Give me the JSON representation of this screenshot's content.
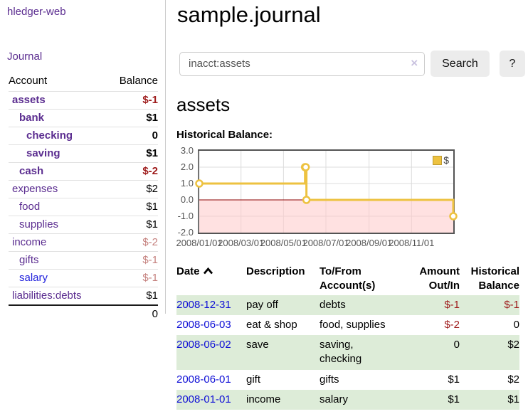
{
  "colors": {
    "accent_purple": "#5b2d90",
    "link_blue": "#0f0fd6",
    "negative_strong": "#9e1b1b",
    "negative_soft": "#c5817e",
    "stripe_green": "#ddecd8",
    "series_gold": "#EDC240",
    "zero_line": "#8b0000",
    "negative_region": "#ffc9c9"
  },
  "sidebar": {
    "app_title": "hledger-web",
    "journal_link": "Journal",
    "accounts": {
      "account_header": "Account",
      "balance_header": "Balance",
      "rows": [
        {
          "name": "assets",
          "level": 1,
          "bold": true,
          "name_style": "purple",
          "balance": "$-1",
          "balance_style": "neg-strong"
        },
        {
          "name": "bank",
          "level": 2,
          "bold": true,
          "name_style": "purple",
          "balance": "$1",
          "balance_style": "pos"
        },
        {
          "name": "checking",
          "level": 3,
          "bold": true,
          "name_style": "purple",
          "balance": "0",
          "balance_style": "pos"
        },
        {
          "name": "saving",
          "level": 3,
          "bold": true,
          "name_style": "purple",
          "balance": "$1",
          "balance_style": "pos"
        },
        {
          "name": "cash",
          "level": 2,
          "bold": true,
          "name_style": "purple",
          "balance": "$-2",
          "balance_style": "neg-strong"
        },
        {
          "name": "expenses",
          "level": 1,
          "bold": false,
          "name_style": "purple",
          "balance": "$2",
          "balance_style": "pos"
        },
        {
          "name": "food",
          "level": 2,
          "bold": false,
          "name_style": "purple",
          "balance": "$1",
          "balance_style": "pos"
        },
        {
          "name": "supplies",
          "level": 2,
          "bold": false,
          "name_style": "purple",
          "balance": "$1",
          "balance_style": "pos"
        },
        {
          "name": "income",
          "level": 1,
          "bold": false,
          "name_style": "purple",
          "balance": "$-2",
          "balance_style": "neg-soft"
        },
        {
          "name": "gifts",
          "level": 2,
          "bold": false,
          "name_style": "purple",
          "balance": "$-1",
          "balance_style": "neg-soft"
        },
        {
          "name": "salary",
          "level": 2,
          "bold": false,
          "name_style": "blue",
          "balance": "$-1",
          "balance_style": "neg-soft"
        },
        {
          "name": "liabilities:debts",
          "level": 1,
          "bold": false,
          "name_style": "purple",
          "balance": "$1",
          "balance_style": "pos"
        }
      ],
      "total": "0"
    }
  },
  "main": {
    "title": "sample.journal",
    "search": {
      "value": "inacct:assets",
      "clear_icon": "×",
      "button_label": "Search",
      "help_label": "?"
    },
    "account_heading": "assets",
    "register": {
      "headers": {
        "date": "Date",
        "description": "Description",
        "accounts": "To/From Account(s)",
        "amount": "Amount Out/In",
        "balance": "Historical Balance"
      },
      "rows": [
        {
          "date": "2008-12-31",
          "description": "pay off",
          "accounts": "debts",
          "amount": "$-1",
          "amount_negative": true,
          "balance": "$-1",
          "balance_negative": true
        },
        {
          "date": "2008-06-03",
          "description": "eat & shop",
          "accounts": "food, supplies",
          "amount": "$-2",
          "amount_negative": true,
          "balance": "0",
          "balance_negative": false
        },
        {
          "date": "2008-06-02",
          "description": "save",
          "accounts": "saving, checking",
          "amount": "0",
          "amount_negative": false,
          "balance": "$2",
          "balance_negative": false
        },
        {
          "date": "2008-06-01",
          "description": "gift",
          "accounts": "gifts",
          "amount": "$1",
          "amount_negative": false,
          "balance": "$2",
          "balance_negative": false
        },
        {
          "date": "2008-01-01",
          "description": "income",
          "accounts": "salary",
          "amount": "$1",
          "amount_negative": false,
          "balance": "$1",
          "balance_negative": false
        }
      ]
    }
  },
  "chart_data": {
    "type": "line",
    "step": true,
    "title": "Historical Balance:",
    "series": [
      {
        "name": "$",
        "color": "#EDC240",
        "points": [
          [
            "2008-01-01",
            1
          ],
          [
            "2008-06-01",
            2
          ],
          [
            "2008-06-02",
            2
          ],
          [
            "2008-06-03",
            0
          ],
          [
            "2008-12-31",
            -1
          ]
        ]
      }
    ],
    "x_range": [
      "2008-01-01",
      "2008-12-31"
    ],
    "xticks": [
      "2008/01/01",
      "2008/03/01",
      "2008/05/01",
      "2008/07/01",
      "2008/09/01",
      "2008/11/01"
    ],
    "yticks": [
      "3.0",
      "2.0",
      "1.0",
      "0.0",
      "-1.0",
      "-2.0"
    ],
    "ylim": [
      -2,
      3
    ],
    "grid": true,
    "legend_position": "top-right",
    "negative_region_color": "#ffc9c9",
    "zero_line_color": "#8b0000"
  }
}
